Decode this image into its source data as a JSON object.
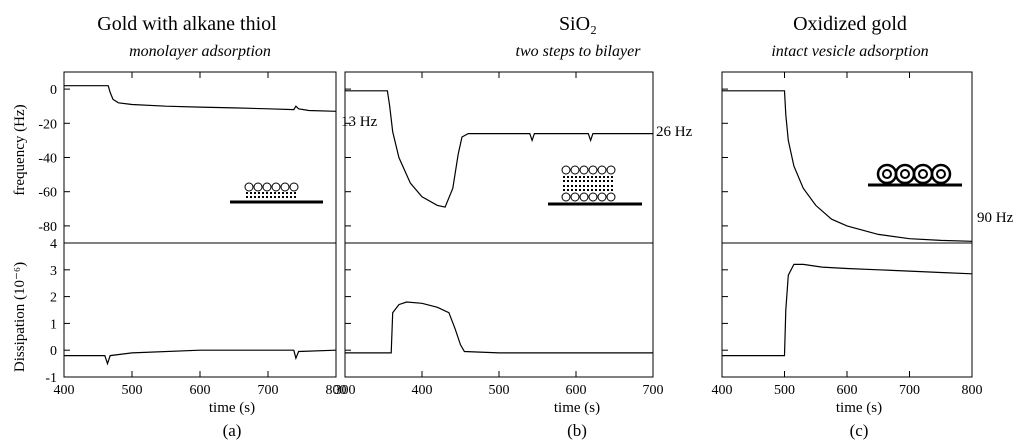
{
  "chart_data": [
    {
      "type": "line",
      "panel_label": "(a)",
      "title": "Gold with alkane thiol",
      "subtitle": "monolayer adsorption",
      "xlabel": "time (s)",
      "xlim": [
        400,
        800
      ],
      "x_ticks": [
        400,
        500,
        600,
        700,
        800
      ],
      "frequency": {
        "ylabel": "frequency (Hz)",
        "ylim": [
          -90,
          10
        ],
        "y_ticks": [
          0,
          -20,
          -40,
          -60,
          -80
        ],
        "annotation": "13 Hz",
        "points": [
          [
            400,
            2
          ],
          [
            465,
            2
          ],
          [
            468,
            -2
          ],
          [
            472,
            -6
          ],
          [
            480,
            -8
          ],
          [
            500,
            -9
          ],
          [
            550,
            -10
          ],
          [
            600,
            -10.5
          ],
          [
            650,
            -11
          ],
          [
            700,
            -11.5
          ],
          [
            738,
            -12
          ],
          [
            741,
            -10
          ],
          [
            745,
            -11.5
          ],
          [
            760,
            -12.5
          ],
          [
            800,
            -13
          ]
        ]
      },
      "dissipation": {
        "ylabel": "Dissipation (10⁻⁶)",
        "ylim": [
          -1,
          4
        ],
        "y_ticks": [
          -1,
          0,
          1,
          2,
          3,
          4
        ],
        "points": [
          [
            400,
            -0.2
          ],
          [
            460,
            -0.2
          ],
          [
            464,
            -0.5
          ],
          [
            468,
            -0.2
          ],
          [
            500,
            -0.1
          ],
          [
            600,
            0.0
          ],
          [
            700,
            0.0
          ],
          [
            738,
            0.0
          ],
          [
            741,
            -0.3
          ],
          [
            745,
            -0.05
          ],
          [
            800,
            0.0
          ]
        ]
      }
    },
    {
      "type": "line",
      "panel_label": "(b)",
      "title": "SiO₂",
      "subtitle": "two steps to bilayer",
      "xlabel": "time (s)",
      "xlim": [
        300,
        700
      ],
      "x_ticks": [
        300,
        400,
        500,
        600,
        700
      ],
      "frequency": {
        "ylabel": "",
        "ylim": [
          -90,
          10
        ],
        "annotation": "26 Hz",
        "points": [
          [
            300,
            -1
          ],
          [
            355,
            -1
          ],
          [
            358,
            -10
          ],
          [
            362,
            -25
          ],
          [
            370,
            -40
          ],
          [
            385,
            -55
          ],
          [
            400,
            -63
          ],
          [
            420,
            -68
          ],
          [
            430,
            -69
          ],
          [
            440,
            -58
          ],
          [
            447,
            -38
          ],
          [
            452,
            -28
          ],
          [
            460,
            -26
          ],
          [
            500,
            -26
          ],
          [
            540,
            -26
          ],
          [
            543,
            -30
          ],
          [
            546,
            -26
          ],
          [
            616,
            -26
          ],
          [
            619,
            -30
          ],
          [
            622,
            -26
          ],
          [
            700,
            -26
          ]
        ]
      },
      "dissipation": {
        "ylabel": "",
        "ylim": [
          -1,
          4
        ],
        "points": [
          [
            300,
            -0.1
          ],
          [
            360,
            -0.1
          ],
          [
            362,
            1.4
          ],
          [
            370,
            1.7
          ],
          [
            380,
            1.8
          ],
          [
            400,
            1.75
          ],
          [
            420,
            1.6
          ],
          [
            435,
            1.4
          ],
          [
            443,
            0.8
          ],
          [
            450,
            0.2
          ],
          [
            455,
            -0.05
          ],
          [
            500,
            -0.1
          ],
          [
            600,
            -0.1
          ],
          [
            700,
            -0.1
          ]
        ]
      }
    },
    {
      "type": "line",
      "panel_label": "(c)",
      "title": "Oxidized gold",
      "subtitle": "intact vesicle adsorption",
      "xlabel": "time (s)",
      "xlim": [
        400,
        800
      ],
      "x_ticks": [
        400,
        500,
        600,
        700,
        800
      ],
      "frequency": {
        "ylabel": "",
        "ylim": [
          -90,
          10
        ],
        "annotation": "90 Hz",
        "points": [
          [
            400,
            -1
          ],
          [
            500,
            -1
          ],
          [
            502,
            -15
          ],
          [
            506,
            -30
          ],
          [
            515,
            -45
          ],
          [
            530,
            -58
          ],
          [
            550,
            -68
          ],
          [
            575,
            -76
          ],
          [
            600,
            -80
          ],
          [
            650,
            -85
          ],
          [
            700,
            -87.5
          ],
          [
            750,
            -88.5
          ],
          [
            800,
            -89
          ]
        ]
      },
      "dissipation": {
        "ylabel": "",
        "ylim": [
          -1,
          4
        ],
        "points": [
          [
            400,
            -0.2
          ],
          [
            500,
            -0.2
          ],
          [
            502,
            1.5
          ],
          [
            506,
            2.8
          ],
          [
            515,
            3.2
          ],
          [
            530,
            3.2
          ],
          [
            560,
            3.1
          ],
          [
            600,
            3.05
          ],
          [
            650,
            3.0
          ],
          [
            700,
            2.95
          ],
          [
            750,
            2.9
          ],
          [
            800,
            2.85
          ]
        ]
      }
    }
  ]
}
